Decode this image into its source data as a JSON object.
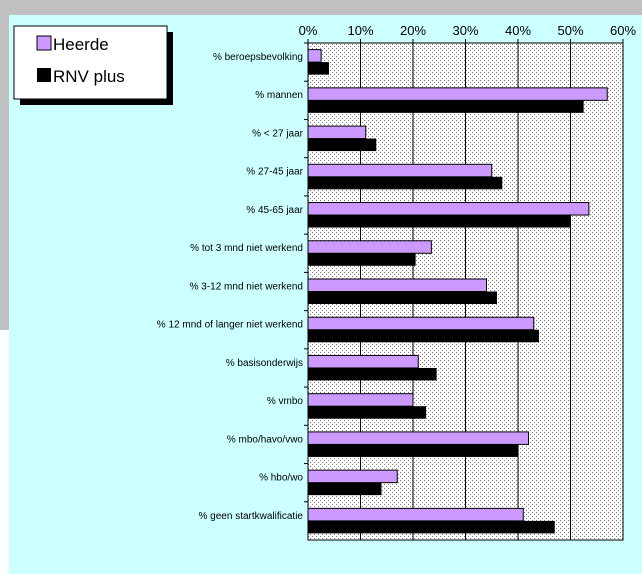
{
  "chart_data": {
    "type": "bar",
    "orientation": "horizontal",
    "categories": [
      "% beroepsbevolking",
      "% mannen",
      "% < 27 jaar",
      "% 27-45 jaar",
      "% 45-65 jaar",
      "% tot 3 mnd niet werkend",
      "% 3-12 mnd niet werkend",
      "% 12 mnd of langer niet werkend",
      "% basisonderwijs",
      "% vmbo",
      "% mbo/havo/vwo",
      "% hbo/wo",
      "% geen startkwalificatie"
    ],
    "series": [
      {
        "name": "Heerde",
        "color": "#cc99ff",
        "values": [
          2.5,
          57,
          11,
          35,
          53.5,
          23.5,
          34,
          43,
          21,
          20,
          42,
          17,
          41
        ]
      },
      {
        "name": "RNV plus",
        "color": "#000000",
        "values": [
          4,
          52.5,
          13,
          37,
          50,
          20.5,
          36,
          44,
          24.5,
          22.5,
          40,
          14,
          47
        ]
      }
    ],
    "xlim": [
      0,
      60
    ],
    "xticks": [
      "0%",
      "10%",
      "20%",
      "30%",
      "40%",
      "50%",
      "60%"
    ],
    "axis_position": "top",
    "grid": true,
    "legend_position": "top-left"
  }
}
